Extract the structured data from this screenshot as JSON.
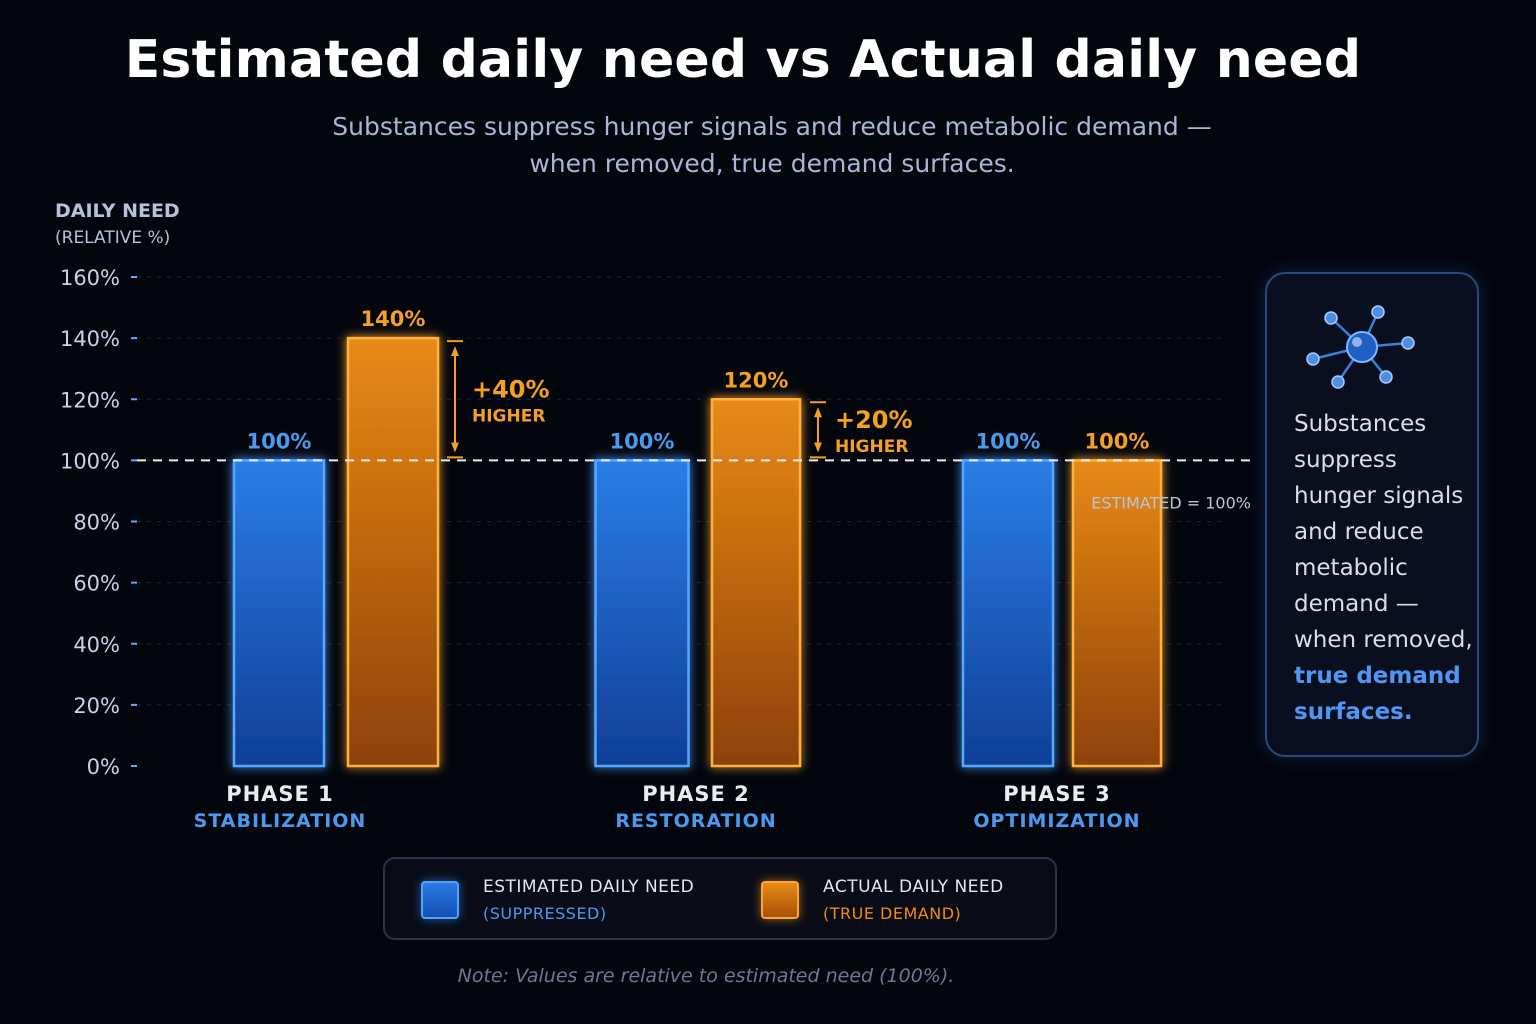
{
  "title": "Estimated daily need vs Actual daily need",
  "subtitle_line1": "Substances suppress hunger signals and reduce metabolic demand —",
  "subtitle_line2": "when removed, true demand surfaces.",
  "y_axis_title": "DAILY NEED",
  "y_axis_unit": "(RELATIVE %)",
  "colors": {
    "estimated": "#2a7ae6",
    "actual": "#e68a14",
    "accent_text_blue": "#4a9af0",
    "accent_text_orange": "#f5a020"
  },
  "chart_data": {
    "type": "bar",
    "categories": [
      "PHASE 1",
      "PHASE 2",
      "PHASE 3"
    ],
    "category_sublabels": [
      "STABILIZATION",
      "RESTORATION",
      "OPTIMIZATION"
    ],
    "series": [
      {
        "name": "ESTIMATED DAILY NEED",
        "values": [
          100,
          100,
          100
        ],
        "data_labels": [
          "100%",
          "100%",
          "100%"
        ]
      },
      {
        "name": "ACTUAL DAILY NEED",
        "values": [
          140,
          120,
          100
        ],
        "data_labels": [
          "140%",
          "120%",
          "100%"
        ]
      }
    ],
    "ylim": [
      0,
      160
    ],
    "y_ticks": [
      0,
      20,
      40,
      60,
      80,
      100,
      120,
      140,
      160
    ],
    "y_tick_labels": [
      "0%",
      "20%",
      "40%",
      "60%",
      "80%",
      "100%",
      "120%",
      "140%",
      "160%"
    ],
    "grid": true,
    "reference_line": {
      "value": 100,
      "label": "ESTIMATED = 100%"
    },
    "annotations": [
      {
        "category": "PHASE 1",
        "text": "+40%",
        "subtext": "HIGHER",
        "from": 100,
        "to": 140
      },
      {
        "category": "PHASE 2",
        "text": "+20%",
        "subtext": "HIGHER",
        "from": 100,
        "to": 120
      }
    ],
    "legend_placement": "bottom"
  },
  "info_box": {
    "icon": "molecule-icon",
    "text_plain": "Substances suppress hunger signals and reduce metabolic demand — when removed,",
    "text_highlight": "true demand surfaces."
  },
  "legend": [
    {
      "label": "ESTIMATED DAILY NEED",
      "sublabel": "(SUPPRESSED)"
    },
    {
      "label": "ACTUAL DAILY NEED",
      "sublabel": "(TRUE DEMAND)"
    }
  ],
  "note": "Note: Values are relative to estimated need (100%)."
}
